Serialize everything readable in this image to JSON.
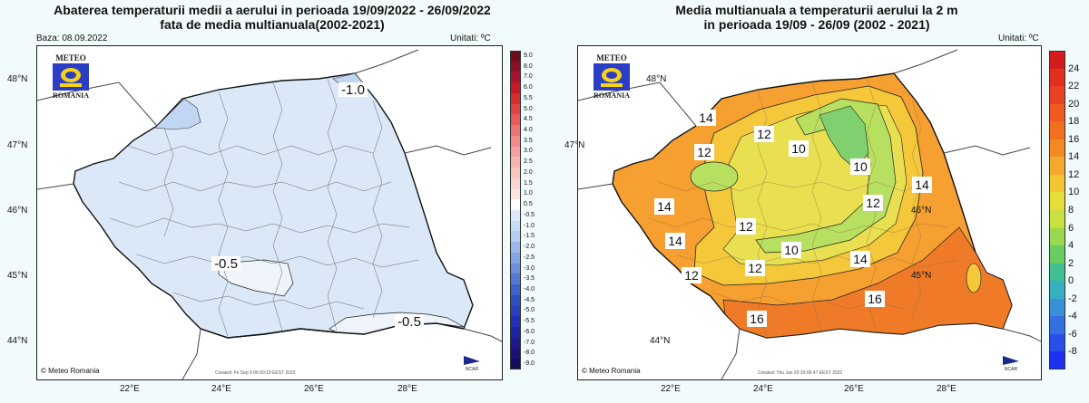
{
  "left": {
    "title_line1": "Abaterea temperaturii medii a aerului in perioada 19/09/2022 - 26/09/2022",
    "title_line2": "fata de media multianuala(2002-2021)",
    "base_label": "Baza: 08.09.2022",
    "units_label": "Unitati: ºC",
    "logo_top": "METEO",
    "logo_bottom": "ROMANIA",
    "credit": "© Meteo Romania",
    "created": "Created: Fri Sep  9 06:00:19 EEST 2022",
    "ncar": "NCAR",
    "lat_labels": [
      "48°N",
      "47°N",
      "46°N",
      "45°N",
      "44°N"
    ],
    "lon_labels": [
      "22°E",
      "24°E",
      "26°E",
      "28°E"
    ],
    "contour_labels": [
      "-1.0",
      "-0.5",
      "-0.5"
    ],
    "legend_labels": [
      "9.0",
      "8.0",
      "7.0",
      "6.0",
      "5.5",
      "5.0",
      "4.5",
      "4.0",
      "3.5",
      "3.0",
      "2.5",
      "2.0",
      "1.5",
      "1.0",
      "0.5",
      "-0.5",
      "-1.0",
      "-1.5",
      "-2.0",
      "-2.5",
      "-3.0",
      "-3.5",
      "-4.0",
      "-4.5",
      "-5.0",
      "-5.5",
      "-6.0",
      "-7.0",
      "-8.0",
      "-9.0"
    ],
    "legend_colors": [
      "#6e0b1f",
      "#8c0f28",
      "#a81430",
      "#c41a2a",
      "#d62e2e",
      "#e04444",
      "#e85a5a",
      "#ee7272",
      "#f28a8a",
      "#f5a0a0",
      "#f7b4b0",
      "#f9c6c0",
      "#fbd6d0",
      "#fde4de",
      "#ffffff",
      "#dce9f8",
      "#c8dcf4",
      "#b4ccee",
      "#9cb8e8",
      "#84a4e2",
      "#6c8edc",
      "#5478d4",
      "#3e62cc",
      "#2e4ec4",
      "#2a3ec0",
      "#2430b4",
      "#2024a4",
      "#1c1890",
      "#1a1278",
      "#140c5c"
    ],
    "fill_main": "#dae8f8",
    "fill_deep": "#c0d6f2",
    "fill_light": "#eff4fb"
  },
  "right": {
    "title_line1": "Media multianuala a temperaturii aerului la 2 m",
    "title_line2": "in perioada 19/09 - 26/09 (2002 - 2021)",
    "units_label": "Unitati: ºC",
    "logo_top": "METEO",
    "logo_bottom": "ROMANIA",
    "credit": "© Meteo Romania",
    "created": "Created: Thu Jan 20 20:00:47 EEST 2022",
    "ncar": "NCAR",
    "lat_labels": [
      "48°N",
      "47°N",
      "46°N",
      "45°N",
      "44°N"
    ],
    "lon_labels": [
      "22°E",
      "24°E",
      "26°E",
      "28°E"
    ],
    "contour_labels": [
      "14",
      "12",
      "10",
      "12",
      "10",
      "14",
      "12",
      "12",
      "14",
      "10",
      "14",
      "12",
      "12",
      "14",
      "16",
      "16"
    ],
    "legend_labels": [
      "24",
      "22",
      "20",
      "18",
      "16",
      "14",
      "12",
      "10",
      "8",
      "6",
      "4",
      "2",
      "0",
      "-2",
      "-4",
      "-6",
      "-8"
    ],
    "legend_colors": [
      "#d41c1c",
      "#e03020",
      "#e84424",
      "#ee5a20",
      "#f07020",
      "#f28a24",
      "#f4a82c",
      "#f2c430",
      "#e8dc38",
      "#c8e040",
      "#98d850",
      "#68cc60",
      "#40c090",
      "#38b0c0",
      "#3a90d8",
      "#3470e0",
      "#2a4ee8",
      "#1e30f0"
    ],
    "fill_base": "#f5a030",
    "fill_warm": "#ef7a28",
    "fill_yellow": "#f4c83a",
    "fill_ylight": "#e8e050",
    "fill_green": "#b8e060",
    "fill_dgreen": "#80d070"
  }
}
